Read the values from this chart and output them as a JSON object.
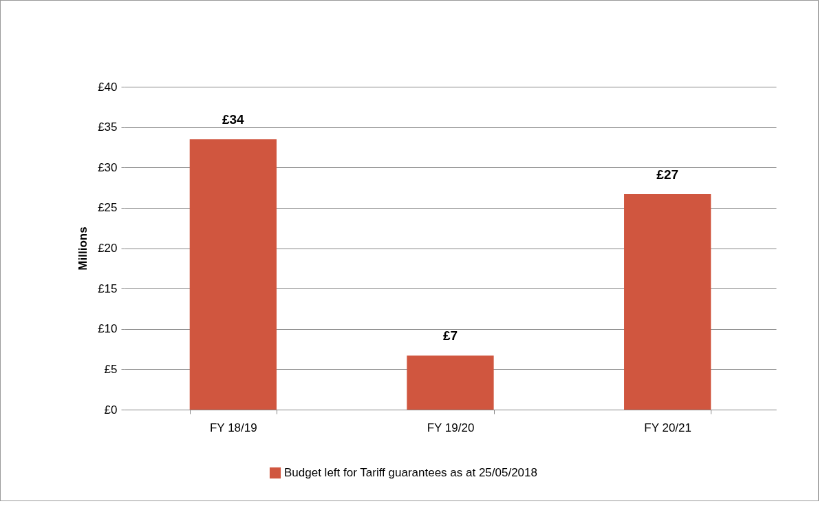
{
  "chart_data": {
    "type": "bar",
    "ylabel": "Millions",
    "categories": [
      "FY 18/19",
      "FY  19/20",
      "FY  20/21"
    ],
    "series": [
      {
        "name": "Budget left for Tariff guarantees as at 25/05/2018",
        "color": "#d0563f",
        "values": [
          33.5,
          6.7,
          26.7
        ],
        "value_labels": [
          "£34",
          "£7",
          "£27"
        ]
      }
    ],
    "ylim": [
      0,
      40
    ],
    "yticks": [
      {
        "value": 0,
        "label": "£0"
      },
      {
        "value": 5,
        "label": "£5"
      },
      {
        "value": 10,
        "label": "£10"
      },
      {
        "value": 15,
        "label": "£15"
      },
      {
        "value": 20,
        "label": "£20"
      },
      {
        "value": 25,
        "label": "£25"
      },
      {
        "value": 30,
        "label": "£30"
      },
      {
        "value": 35,
        "label": "£35"
      },
      {
        "value": 40,
        "label": "£40"
      }
    ],
    "grid": "y",
    "legend": "bottom"
  }
}
